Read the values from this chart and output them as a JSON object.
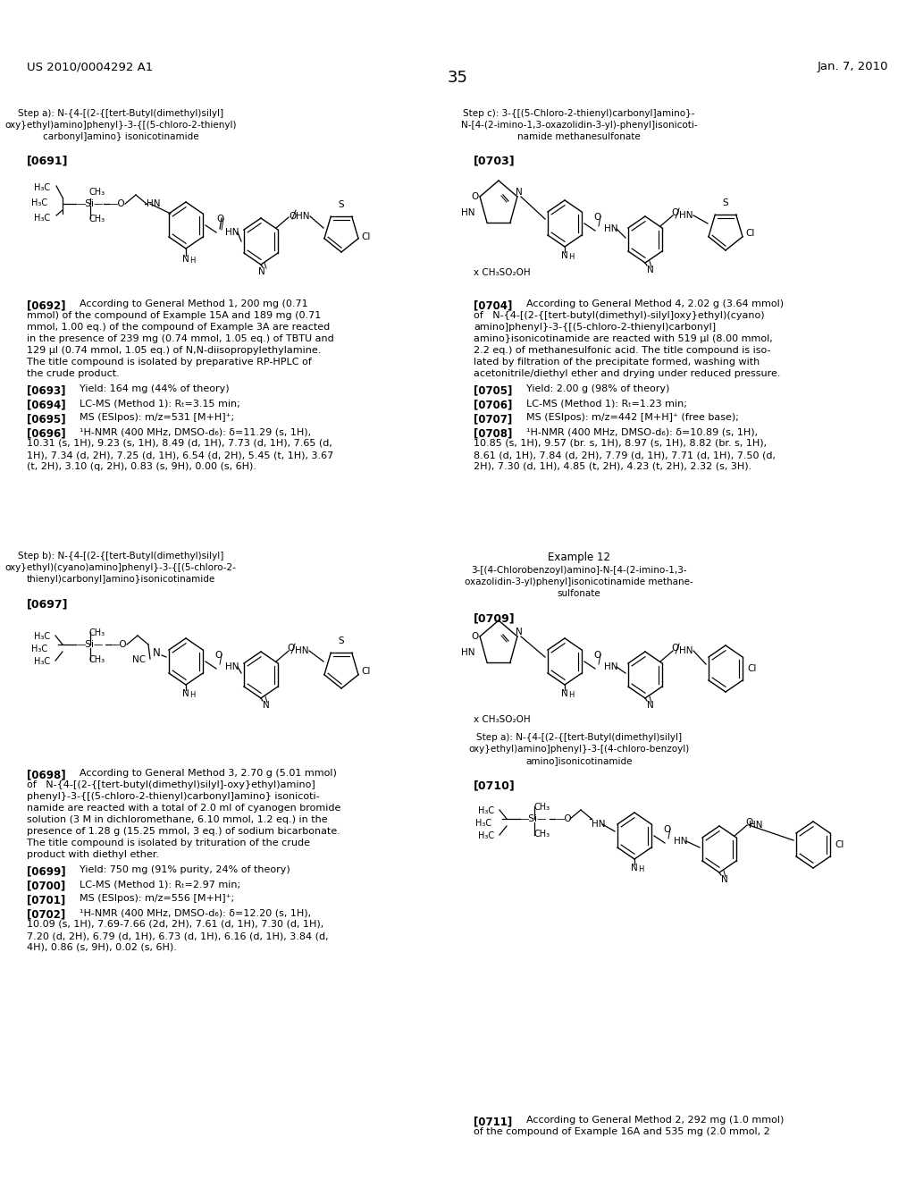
{
  "bg": "#ffffff",
  "text_color": "#000000",
  "header_left": "US 2010/0004292 A1",
  "header_right": "Jan. 7, 2010",
  "page_num": "35",
  "step_a_left_lines": [
    "Step a): N-{4-[(2-{[tert-Butyl(dimethyl)silyl]",
    "oxy}ethyl)amino]phenyl}-3-{[(5-chloro-2-thienyl)",
    "carbonyl]amino} isonicotinamide"
  ],
  "step_c_right_lines": [
    "Step c): 3-{[(5-Chloro-2-thienyl)carbonyl]amino}-",
    "N-[4-(2-imino-1,3-oxazolidin-3-yl)-phenyl]isonicoti-",
    "namide methanesulfonate"
  ],
  "label_0691": "[0691]",
  "label_0703": "[0703]",
  "label_0692": "[0692]",
  "para_0692": [
    "[0692]   According to General Method 1, 200 mg (0.71",
    "mmol) of the compound of Example 15A and 189 mg (0.71",
    "mmol, 1.00 eq.) of the compound of Example 3A are reacted",
    "in the presence of 239 mg (0.74 mmol, 1.05 eq.) of TBTU and",
    "129 μl (0.74 mmol, 1.05 eq.) of N,N-diisopropylethylamine.",
    "The title compound is isolated by preparative RP-HPLC of",
    "the crude product."
  ],
  "para_0693": "[0693]   Yield: 164 mg (44% of theory)",
  "para_0694": "[0694]   LC-MS (Method 1): Rₜ=3.15 min;",
  "para_0695": "[0695]   MS (ESIpos): m/z=531 [M+H]⁺;",
  "para_0696": [
    "[0696]   ¹H-NMR (400 MHz, DMSO-d₆): δ=11.29 (s, 1H),",
    "10.31 (s, 1H), 9.23 (s, 1H), 8.49 (d, 1H), 7.73 (d, 1H), 7.65 (d,",
    "1H), 7.34 (d, 2H), 7.25 (d, 1H), 6.54 (d, 2H), 5.45 (t, 1H), 3.67",
    "(t, 2H), 3.10 (q, 2H), 0.83 (s, 9H), 0.00 (s, 6H)."
  ],
  "step_b_lines": [
    "Step b): N-{4-[(2-{[tert-Butyl(dimethyl)silyl]",
    "oxy}ethyl)(cyano)amino]phenyl}-3-{[(5-chloro-2-",
    "thienyl)carbonyl]amino}isonicotinamide"
  ],
  "label_0697": "[0697]",
  "para_0698": [
    "[0698]   According to General Method 3, 2.70 g (5.01 mmol)",
    "of   N-{4-[(2-{[tert-butyl(dimethyl)silyl]-oxy}ethyl)amino]",
    "phenyl}-3-{[(5-chloro-2-thienyl)carbonyl]amino} isonicoti-",
    "namide are reacted with a total of 2.0 ml of cyanogen bromide",
    "solution (3 M in dichloromethane, 6.10 mmol, 1.2 eq.) in the",
    "presence of 1.28 g (15.25 mmol, 3 eq.) of sodium bicarbonate.",
    "The title compound is isolated by trituration of the crude",
    "product with diethyl ether."
  ],
  "para_0699": "[0699]   Yield: 750 mg (91% purity, 24% of theory)",
  "para_0700": "[0700]   LC-MS (Method 1): Rₜ=2.97 min;",
  "para_0701": "[0701]   MS (ESIpos): m/z=556 [M+H]⁺;",
  "para_0702": [
    "[0702]   ¹H-NMR (400 MHz, DMSO-d₆): δ=12.20 (s, 1H),",
    "10.09 (s, 1H), 7.69-7.66 (2d, 2H), 7.61 (d, 1H), 7.30 (d, 1H),",
    "7.20 (d, 2H), 6.79 (d, 1H), 6.73 (d, 1H), 6.16 (d, 1H), 3.84 (d,",
    "4H), 0.86 (s, 9H), 0.02 (s, 6H)."
  ],
  "para_0704": [
    "[0704]   According to General Method 4, 2.02 g (3.64 mmol)",
    "of   N-{4-[(2-{[tert-butyl(dimethyl)-silyl]oxy}ethyl)(cyano)",
    "amino]phenyl}-3-{[(5-chloro-2-thienyl)carbonyl]",
    "amino}isonicotinamide are reacted with 519 μl (8.00 mmol,",
    "2.2 eq.) of methanesulfonic acid. The title compound is iso-",
    "lated by filtration of the precipitate formed, washing with",
    "acetonitrile/diethyl ether and drying under reduced pressure."
  ],
  "para_0705": "[0705]   Yield: 2.00 g (98% of theory)",
  "para_0706": "[0706]   LC-MS (Method 1): Rₜ=1.23 min;",
  "para_0707": "[0707]   MS (ESIpos): m/z=442 [M+H]⁺ (free base);",
  "para_0708": [
    "[0708]   ¹H-NMR (400 MHz, DMSO-d₆): δ=10.89 (s, 1H),",
    "10.85 (s, 1H), 9.57 (br. s, 1H), 8.97 (s, 1H), 8.82 (br. s, 1H),",
    "8.61 (d, 1H), 7.84 (d, 2H), 7.79 (d, 1H), 7.71 (d, 1H), 7.50 (d,",
    "2H), 7.30 (d, 1H), 4.85 (t, 2H), 4.23 (t, 2H), 2.32 (s, 3H)."
  ],
  "example12_title": "Example 12",
  "example12_subtitle": [
    "3-[(4-Chlorobenzoyl)amino]-N-[4-(2-imino-1,3-",
    "oxazolidin-3-yl)phenyl]isonicotinamide methane-",
    "sulfonate"
  ],
  "label_0709": "[0709]",
  "step_a_right2_lines": [
    "Step a): N-{4-[(2-{[tert-Butyl(dimethyl)silyl]",
    "oxy}ethyl)amino]phenyl}-3-[(4-chloro-benzoyl)",
    "amino]isonicotinamide"
  ],
  "label_0710": "[0710]",
  "para_0711_partial": "[0711]   According to General Method 2, 292 mg (1.0 mmol)",
  "para_0711_partial2": "of the compound of Example 16A and 535 mg (2.0 mmol, 2"
}
